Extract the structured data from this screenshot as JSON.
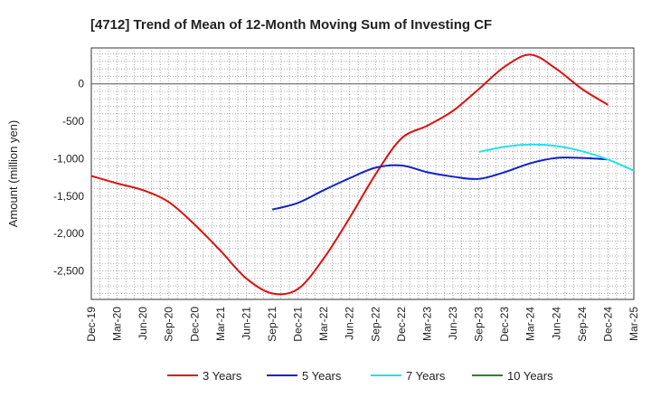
{
  "chart_data": {
    "type": "line",
    "title": "[4712]  Trend of Mean of 12-Month Moving Sum of Investing CF",
    "xlabel": "",
    "ylabel": "Amount (million yen)",
    "ylim": [
      -2880,
      480
    ],
    "yticks": [
      0,
      -500,
      -1000,
      -1500,
      -2000,
      -2500
    ],
    "ytick_labels": [
      "0",
      "-500",
      "-1,000",
      "-1,500",
      "-2,000",
      "-2,500"
    ],
    "x_tick_labels": [
      "Dec-19",
      "Mar-20",
      "Jun-20",
      "Sep-20",
      "Dec-20",
      "Mar-21",
      "Jun-21",
      "Sep-21",
      "Dec-21",
      "Mar-22",
      "Jun-22",
      "Sep-22",
      "Dec-22",
      "Mar-23",
      "Jun-23",
      "Sep-23",
      "Dec-23",
      "Mar-24",
      "Jun-24",
      "Sep-24",
      "Dec-24",
      "Mar-25"
    ],
    "grid": true,
    "legend_position": "bottom",
    "series": [
      {
        "name": "3 Years",
        "color": "#dd1111",
        "start_index": 0,
        "values": [
          -1230,
          -1330,
          -1420,
          -1580,
          -1880,
          -2230,
          -2600,
          -2800,
          -2740,
          -2330,
          -1790,
          -1210,
          -730,
          -560,
          -360,
          -70,
          230,
          390,
          200,
          -70,
          -280
        ]
      },
      {
        "name": "5 Years",
        "color": "#1020d0",
        "start_index": 7,
        "values": [
          -1680,
          -1590,
          -1420,
          -1260,
          -1120,
          -1090,
          -1180,
          -1240,
          -1270,
          -1180,
          -1060,
          -990,
          -990,
          -1010
        ]
      },
      {
        "name": "7 Years",
        "color": "#22e0ee",
        "start_index": 15,
        "values": [
          -910,
          -840,
          -810,
          -830,
          -900,
          -1010,
          -1160
        ]
      },
      {
        "name": "10 Years",
        "color": "#228822",
        "start_index": 0,
        "values": []
      }
    ]
  }
}
